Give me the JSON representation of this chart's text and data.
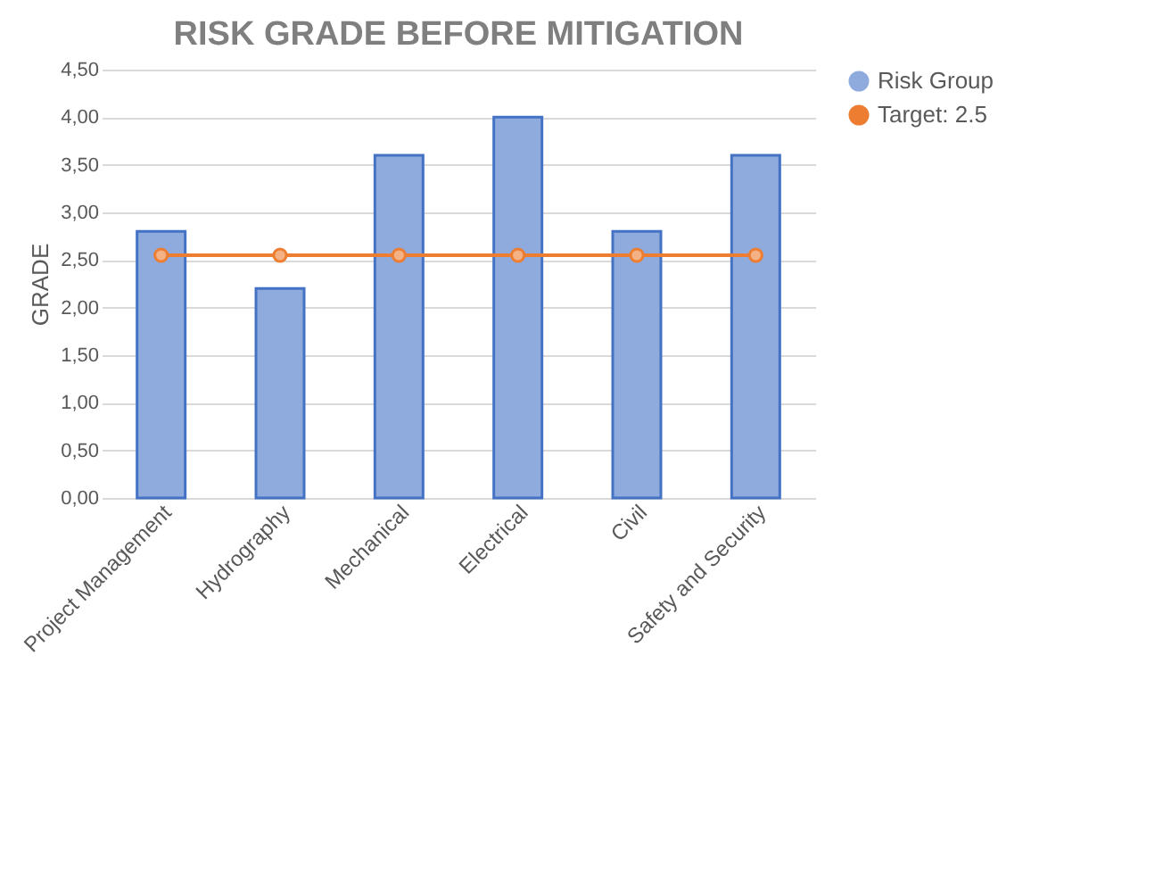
{
  "chart_data": {
    "type": "bar",
    "title": "RISK GRADE BEFORE MITIGATION",
    "ylabel": "GRADE",
    "categories": [
      "Project Management",
      "Hydrography",
      "Mechanical",
      "Electrical",
      "Civil",
      "Safety and Security"
    ],
    "series": [
      {
        "name": "Risk Group",
        "color": "#8faadc",
        "values": [
          2.8,
          2.2,
          3.6,
          4.0,
          2.8,
          3.6
        ]
      },
      {
        "name": "Target: 2.5",
        "type": "line",
        "color": "#ed7d31",
        "values": [
          2.55,
          2.55,
          2.55,
          2.55,
          2.55,
          2.55
        ]
      }
    ],
    "ylim": [
      0,
      4.5
    ],
    "yticks": [
      {
        "value": 0,
        "label": "0,00"
      },
      {
        "value": 0.5,
        "label": "0,50"
      },
      {
        "value": 1,
        "label": "1,00"
      },
      {
        "value": 1.5,
        "label": "1,50"
      },
      {
        "value": 2,
        "label": "2,00"
      },
      {
        "value": 2.5,
        "label": "2,50"
      },
      {
        "value": 3,
        "label": "3,00"
      },
      {
        "value": 3.5,
        "label": "3,50"
      },
      {
        "value": 4,
        "label": "4,00"
      },
      {
        "value": 4.5,
        "label": "4,50"
      }
    ],
    "grid": "y",
    "legend": "right",
    "marker": "circle"
  }
}
